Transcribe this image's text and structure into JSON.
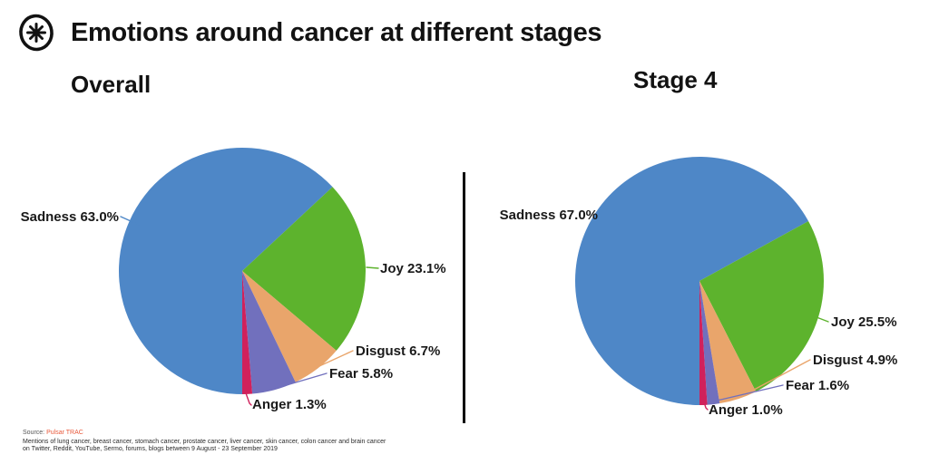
{
  "header": {
    "title": "Emotions around cancer at different stages",
    "logo_icon": "asterisk-in-circle"
  },
  "chart_data": [
    {
      "type": "pie",
      "title": "Overall",
      "categories": [
        "Sadness",
        "Joy",
        "Disgust",
        "Fear",
        "Anger"
      ],
      "values": [
        63.0,
        23.1,
        6.7,
        5.8,
        1.3
      ],
      "labels": [
        "Sadness 63.0%",
        "Joy 23.1%",
        "Disgust 6.7%",
        "Fear 5.8%",
        "Anger 1.3%"
      ],
      "colors": [
        "#4e87c7",
        "#5db32d",
        "#e9a56b",
        "#7170bd",
        "#d0215c"
      ],
      "start_angle_clockwise_from_top": 180,
      "direction": "clockwise",
      "legend": "none",
      "label_style": "outside-with-leader-lines"
    },
    {
      "type": "pie",
      "title": "Stage 4",
      "categories": [
        "Sadness",
        "Joy",
        "Disgust",
        "Fear",
        "Anger"
      ],
      "values": [
        67.0,
        25.5,
        4.9,
        1.6,
        1.0
      ],
      "labels": [
        "Sadness 67.0%",
        "Joy 25.5%",
        "Disgust 4.9%",
        "Fear 1.6%",
        "Anger 1.0%"
      ],
      "colors": [
        "#4e87c7",
        "#5db32d",
        "#e9a56b",
        "#7170bd",
        "#d0215c"
      ],
      "start_angle_clockwise_from_top": 180,
      "direction": "clockwise",
      "legend": "none",
      "label_style": "outside-with-leader-lines"
    }
  ],
  "footer": {
    "source_prefix": "Source: ",
    "source_name": "Pulsar TRAC",
    "source_color": "#e8583a",
    "description_line1": "Mentions of lung cancer, breast cancer, stomach cancer, prostate cancer, liver cancer, skin cancer, colon cancer and brain cancer",
    "description_line2": "on Twitter, Reddit, YouTube, Sermo, forums, blogs between 9 August - 23 September 2019"
  }
}
